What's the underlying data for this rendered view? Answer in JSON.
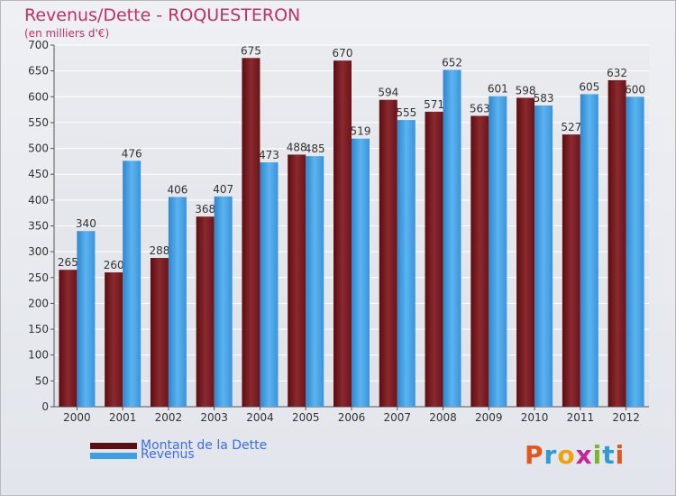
{
  "chart_data": {
    "type": "bar",
    "title": "Revenus/Dette - ROQUESTERON",
    "subtitle": "(en milliers d'€)",
    "categories": [
      "2000",
      "2001",
      "2002",
      "2003",
      "2004",
      "2005",
      "2006",
      "2007",
      "2008",
      "2009",
      "2010",
      "2011",
      "2012"
    ],
    "series": [
      {
        "name": "Montant de la Dette",
        "color": "#7b1a1f",
        "values": [
          265,
          260,
          288,
          368,
          675,
          488,
          670,
          594,
          571,
          563,
          598,
          527,
          632
        ]
      },
      {
        "name": "Revenus",
        "color": "#3f9ee4",
        "values": [
          340,
          476,
          406,
          407,
          473,
          485,
          519,
          555,
          652,
          601,
          583,
          605,
          600
        ]
      }
    ],
    "yticks": [
      0,
      50,
      100,
      150,
      200,
      250,
      300,
      350,
      400,
      450,
      500,
      550,
      600,
      650,
      700
    ],
    "ylim": [
      0,
      700
    ],
    "grid": true,
    "legend_position": "bottom-left"
  },
  "branding": {
    "logo_letters": [
      "P",
      "r",
      "o",
      "x",
      "i",
      "t",
      "i"
    ],
    "logo_colors": [
      "#e0581e",
      "#2e9bd6",
      "#f0a20a",
      "#c5259a",
      "#7ab52a",
      "#2e9bd6",
      "#e0581e"
    ]
  }
}
